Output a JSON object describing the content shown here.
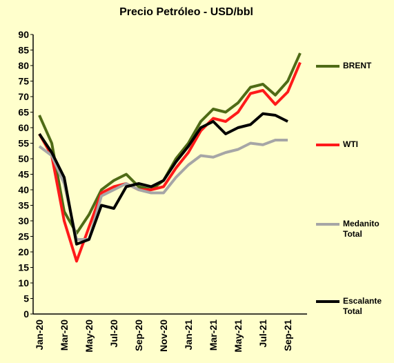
{
  "chart_data": {
    "type": "line",
    "title": "Precio Petróleo - USD/bbl",
    "categories": [
      "Jan-20",
      null,
      "Mar-20",
      null,
      "May-20",
      null,
      "Jul-20",
      null,
      "Sep-20",
      null,
      "Nov-20",
      null,
      "Jan-21",
      null,
      "Mar-21",
      null,
      "May-21",
      null,
      "Jul-21",
      null,
      "Sep-21",
      null
    ],
    "series": [
      {
        "name": "BRENT",
        "color": "#4f6b16",
        "values": [
          64,
          55,
          33,
          26,
          32,
          40,
          43,
          45,
          41,
          40,
          43,
          50,
          55,
          62,
          66,
          65,
          68,
          73,
          74,
          70.5,
          75,
          84
        ]
      },
      {
        "name": "WTI",
        "color": "#ff1a1a",
        "values": [
          58,
          51,
          30,
          17,
          28,
          39,
          41,
          42,
          40,
          40,
          41,
          47,
          52,
          59,
          63,
          62,
          65,
          71,
          72,
          67.5,
          71.5,
          81
        ]
      },
      {
        "name": "Medanito Total",
        "color": "#a6a6a6",
        "values": [
          54,
          51,
          42,
          24,
          24,
          38,
          40,
          42,
          40,
          39,
          39,
          44,
          48,
          51,
          50.5,
          52,
          53,
          55,
          54.5,
          56,
          56,
          null
        ]
      },
      {
        "name": "Escalante Total",
        "color": "#000000",
        "values": [
          58,
          52,
          44,
          22.5,
          24,
          35,
          34,
          41,
          42,
          41,
          43,
          49,
          54,
          60,
          62,
          58,
          60,
          61,
          64.5,
          64,
          62,
          null
        ]
      }
    ],
    "ylim": [
      0,
      90
    ],
    "yticks": [
      0,
      5,
      10,
      15,
      20,
      25,
      30,
      35,
      40,
      45,
      50,
      55,
      60,
      65,
      70,
      75,
      80,
      85,
      90
    ],
    "grid": false
  }
}
